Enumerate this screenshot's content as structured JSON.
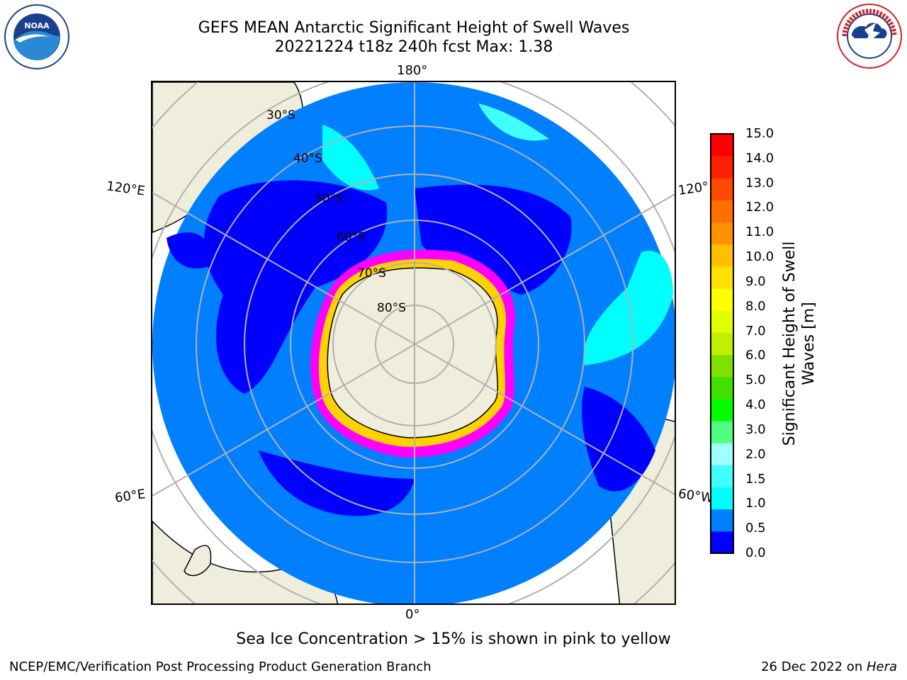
{
  "title": {
    "line1": "GEFS MEAN Antarctic Significant Height of Swell Waves",
    "line2": "20221224 t18z 240h fcst   Max: 1.38"
  },
  "logos": {
    "left": {
      "label": "NOAA",
      "icon": "noaa-logo"
    },
    "right": {
      "label": "NATIONAL WEATHER SERVICE",
      "icon": "nws-logo"
    }
  },
  "map": {
    "projection": "south-polar-stereographic",
    "longitude_labels": {
      "top": "180°",
      "bottom": "0°",
      "upper_left": "120°E",
      "lower_left": "60°E",
      "upper_right": "120°",
      "lower_right": "60°W"
    },
    "latitude_labels": [
      "30°S",
      "40°S",
      "50°S",
      "60°S",
      "70°S",
      "80°S"
    ],
    "colors": {
      "land": "#efeedc",
      "ocean_0_5": "#0000ff",
      "ocean_0_5_1_0": "#0080ff",
      "ocean_1_0_1_5": "#00ffff",
      "ocean_1_5_2_0": "#80ffff",
      "sea_ice_low": "#ff00ff",
      "sea_ice_high": "#ffd200",
      "gridline": "#b0b0b0"
    }
  },
  "colorbar": {
    "label_line1": "Significant Height of Swell",
    "label_line2": "Waves [m]",
    "ticks": [
      "15.0",
      "14.0",
      "13.0",
      "12.0",
      "11.0",
      "10.0",
      "9.0",
      "8.0",
      "7.0",
      "6.0",
      "5.0",
      "4.0",
      "3.0",
      "2.0",
      "1.5",
      "1.0",
      "0.5",
      "0.0"
    ],
    "colors": [
      "#0000ff",
      "#0080ff",
      "#00ffff",
      "#40ffff",
      "#a0ffff",
      "#50ff80",
      "#00ff00",
      "#40e000",
      "#80e000",
      "#c0f000",
      "#e0ff00",
      "#ffff00",
      "#ffe000",
      "#ffc000",
      "#ff9000",
      "#ff7000",
      "#ff4800",
      "#ff2000",
      "#ff0000"
    ]
  },
  "caption": "Sea Ice Concentration > 15% is shown in pink to yellow",
  "footer": {
    "left": "NCEP/EMC/Verification Post Processing Product Generation Branch",
    "right_date": "26 Dec 2022 on ",
    "right_host": "Hera"
  }
}
